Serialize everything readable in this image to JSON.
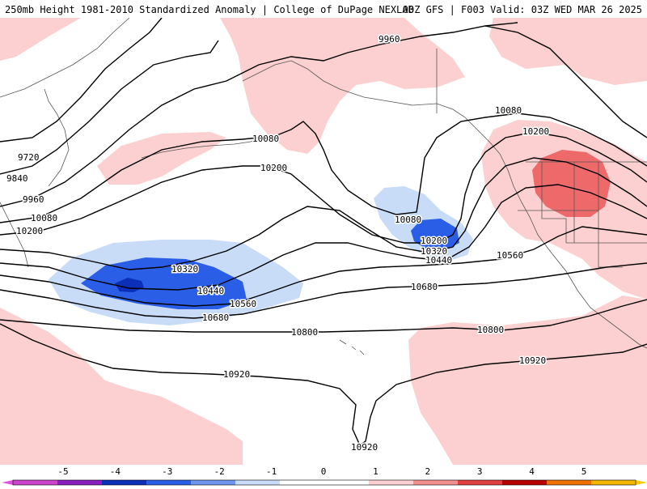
{
  "header": {
    "left": "250mb Height 1981-2010 Standardized Anomaly | College of DuPage NEXLAB",
    "right": "00Z GFS | F003 Valid: 03Z WED MAR 26 2025"
  },
  "contours": {
    "labels": [
      "9720",
      "9840",
      "9960",
      "10080",
      "10200",
      "10320",
      "10440",
      "10560",
      "10680",
      "10800",
      "10920"
    ],
    "placed": [
      {
        "id": "c9960-ne",
        "text": "9960"
      },
      {
        "id": "c10080-ne",
        "text": "10080"
      },
      {
        "id": "c10200-ne",
        "text": "10200"
      },
      {
        "id": "c10080-mid",
        "text": "10080"
      },
      {
        "id": "c10200-mid",
        "text": "10200"
      },
      {
        "id": "c9720-w",
        "text": "9720"
      },
      {
        "id": "c9840-w",
        "text": "9840"
      },
      {
        "id": "c9960-w",
        "text": "9960"
      },
      {
        "id": "c10080-w",
        "text": "10080"
      },
      {
        "id": "c10200-w",
        "text": "10200"
      },
      {
        "id": "c10080-low",
        "text": "10080"
      },
      {
        "id": "c10200-low",
        "text": "10200"
      },
      {
        "id": "c10320-low",
        "text": "10320"
      },
      {
        "id": "c10440-low",
        "text": "10440"
      },
      {
        "id": "c10320-wlow",
        "text": "10320"
      },
      {
        "id": "c10440-wlow",
        "text": "10440"
      },
      {
        "id": "c10560-wlow",
        "text": "10560"
      },
      {
        "id": "c10680-wlow",
        "text": "10680"
      },
      {
        "id": "c10560-e",
        "text": "10560"
      },
      {
        "id": "c10680-c",
        "text": "10680"
      },
      {
        "id": "c10800-c",
        "text": "10800"
      },
      {
        "id": "c10800-e",
        "text": "10800"
      },
      {
        "id": "c10920-e",
        "text": "10920"
      },
      {
        "id": "c10920-c",
        "text": "10920"
      },
      {
        "id": "c10920-s",
        "text": "10920"
      }
    ]
  },
  "colorbar": {
    "ticks": [
      "-5",
      "-4",
      "-3",
      "-2",
      "-1",
      "0",
      "1",
      "2",
      "3",
      "4",
      "5"
    ],
    "colors": [
      "#cc44cc",
      "#8a1fc0",
      "#0b2fb8",
      "#2a5ee6",
      "#6f96ee",
      "#c8dcf8",
      "#ffffff",
      "#ffffff",
      "#fcd0d0",
      "#f29090",
      "#e04040",
      "#b80000",
      "#f07000",
      "#f5b800"
    ],
    "arrow_left": "#dd55dd",
    "arrow_right": "#f8c800"
  },
  "anomaly_colors": {
    "pos1": "#fcd0d0",
    "pos2": "#f29090",
    "pos2b": "#ee6a6a",
    "neg1": "#c8dcf8",
    "neg2": "#6f96ee",
    "neg3": "#2a5ee6",
    "neg4": "#0b2fb8"
  }
}
